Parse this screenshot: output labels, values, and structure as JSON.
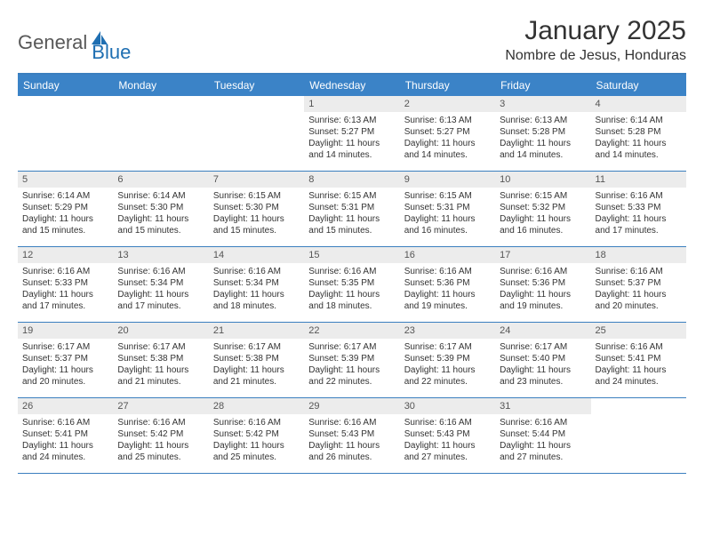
{
  "brand": {
    "general": "General",
    "blue": "Blue"
  },
  "title": "January 2025",
  "location": "Nombre de Jesus, Honduras",
  "colors": {
    "header_bg": "#3b83c7",
    "border": "#3b7fbf",
    "daynum_bg": "#ececec",
    "text": "#333333",
    "logo_gray": "#585858",
    "logo_blue": "#1f6fb2"
  },
  "weekdays": [
    "Sunday",
    "Monday",
    "Tuesday",
    "Wednesday",
    "Thursday",
    "Friday",
    "Saturday"
  ],
  "weeks": [
    [
      {
        "n": "",
        "sr": "",
        "ss": "",
        "dl": ""
      },
      {
        "n": "",
        "sr": "",
        "ss": "",
        "dl": ""
      },
      {
        "n": "",
        "sr": "",
        "ss": "",
        "dl": ""
      },
      {
        "n": "1",
        "sr": "Sunrise: 6:13 AM",
        "ss": "Sunset: 5:27 PM",
        "dl": "Daylight: 11 hours and 14 minutes."
      },
      {
        "n": "2",
        "sr": "Sunrise: 6:13 AM",
        "ss": "Sunset: 5:27 PM",
        "dl": "Daylight: 11 hours and 14 minutes."
      },
      {
        "n": "3",
        "sr": "Sunrise: 6:13 AM",
        "ss": "Sunset: 5:28 PM",
        "dl": "Daylight: 11 hours and 14 minutes."
      },
      {
        "n": "4",
        "sr": "Sunrise: 6:14 AM",
        "ss": "Sunset: 5:28 PM",
        "dl": "Daylight: 11 hours and 14 minutes."
      }
    ],
    [
      {
        "n": "5",
        "sr": "Sunrise: 6:14 AM",
        "ss": "Sunset: 5:29 PM",
        "dl": "Daylight: 11 hours and 15 minutes."
      },
      {
        "n": "6",
        "sr": "Sunrise: 6:14 AM",
        "ss": "Sunset: 5:30 PM",
        "dl": "Daylight: 11 hours and 15 minutes."
      },
      {
        "n": "7",
        "sr": "Sunrise: 6:15 AM",
        "ss": "Sunset: 5:30 PM",
        "dl": "Daylight: 11 hours and 15 minutes."
      },
      {
        "n": "8",
        "sr": "Sunrise: 6:15 AM",
        "ss": "Sunset: 5:31 PM",
        "dl": "Daylight: 11 hours and 15 minutes."
      },
      {
        "n": "9",
        "sr": "Sunrise: 6:15 AM",
        "ss": "Sunset: 5:31 PM",
        "dl": "Daylight: 11 hours and 16 minutes."
      },
      {
        "n": "10",
        "sr": "Sunrise: 6:15 AM",
        "ss": "Sunset: 5:32 PM",
        "dl": "Daylight: 11 hours and 16 minutes."
      },
      {
        "n": "11",
        "sr": "Sunrise: 6:16 AM",
        "ss": "Sunset: 5:33 PM",
        "dl": "Daylight: 11 hours and 17 minutes."
      }
    ],
    [
      {
        "n": "12",
        "sr": "Sunrise: 6:16 AM",
        "ss": "Sunset: 5:33 PM",
        "dl": "Daylight: 11 hours and 17 minutes."
      },
      {
        "n": "13",
        "sr": "Sunrise: 6:16 AM",
        "ss": "Sunset: 5:34 PM",
        "dl": "Daylight: 11 hours and 17 minutes."
      },
      {
        "n": "14",
        "sr": "Sunrise: 6:16 AM",
        "ss": "Sunset: 5:34 PM",
        "dl": "Daylight: 11 hours and 18 minutes."
      },
      {
        "n": "15",
        "sr": "Sunrise: 6:16 AM",
        "ss": "Sunset: 5:35 PM",
        "dl": "Daylight: 11 hours and 18 minutes."
      },
      {
        "n": "16",
        "sr": "Sunrise: 6:16 AM",
        "ss": "Sunset: 5:36 PM",
        "dl": "Daylight: 11 hours and 19 minutes."
      },
      {
        "n": "17",
        "sr": "Sunrise: 6:16 AM",
        "ss": "Sunset: 5:36 PM",
        "dl": "Daylight: 11 hours and 19 minutes."
      },
      {
        "n": "18",
        "sr": "Sunrise: 6:16 AM",
        "ss": "Sunset: 5:37 PM",
        "dl": "Daylight: 11 hours and 20 minutes."
      }
    ],
    [
      {
        "n": "19",
        "sr": "Sunrise: 6:17 AM",
        "ss": "Sunset: 5:37 PM",
        "dl": "Daylight: 11 hours and 20 minutes."
      },
      {
        "n": "20",
        "sr": "Sunrise: 6:17 AM",
        "ss": "Sunset: 5:38 PM",
        "dl": "Daylight: 11 hours and 21 minutes."
      },
      {
        "n": "21",
        "sr": "Sunrise: 6:17 AM",
        "ss": "Sunset: 5:38 PM",
        "dl": "Daylight: 11 hours and 21 minutes."
      },
      {
        "n": "22",
        "sr": "Sunrise: 6:17 AM",
        "ss": "Sunset: 5:39 PM",
        "dl": "Daylight: 11 hours and 22 minutes."
      },
      {
        "n": "23",
        "sr": "Sunrise: 6:17 AM",
        "ss": "Sunset: 5:39 PM",
        "dl": "Daylight: 11 hours and 22 minutes."
      },
      {
        "n": "24",
        "sr": "Sunrise: 6:17 AM",
        "ss": "Sunset: 5:40 PM",
        "dl": "Daylight: 11 hours and 23 minutes."
      },
      {
        "n": "25",
        "sr": "Sunrise: 6:16 AM",
        "ss": "Sunset: 5:41 PM",
        "dl": "Daylight: 11 hours and 24 minutes."
      }
    ],
    [
      {
        "n": "26",
        "sr": "Sunrise: 6:16 AM",
        "ss": "Sunset: 5:41 PM",
        "dl": "Daylight: 11 hours and 24 minutes."
      },
      {
        "n": "27",
        "sr": "Sunrise: 6:16 AM",
        "ss": "Sunset: 5:42 PM",
        "dl": "Daylight: 11 hours and 25 minutes."
      },
      {
        "n": "28",
        "sr": "Sunrise: 6:16 AM",
        "ss": "Sunset: 5:42 PM",
        "dl": "Daylight: 11 hours and 25 minutes."
      },
      {
        "n": "29",
        "sr": "Sunrise: 6:16 AM",
        "ss": "Sunset: 5:43 PM",
        "dl": "Daylight: 11 hours and 26 minutes."
      },
      {
        "n": "30",
        "sr": "Sunrise: 6:16 AM",
        "ss": "Sunset: 5:43 PM",
        "dl": "Daylight: 11 hours and 27 minutes."
      },
      {
        "n": "31",
        "sr": "Sunrise: 6:16 AM",
        "ss": "Sunset: 5:44 PM",
        "dl": "Daylight: 11 hours and 27 minutes."
      },
      {
        "n": "",
        "sr": "",
        "ss": "",
        "dl": ""
      }
    ]
  ]
}
